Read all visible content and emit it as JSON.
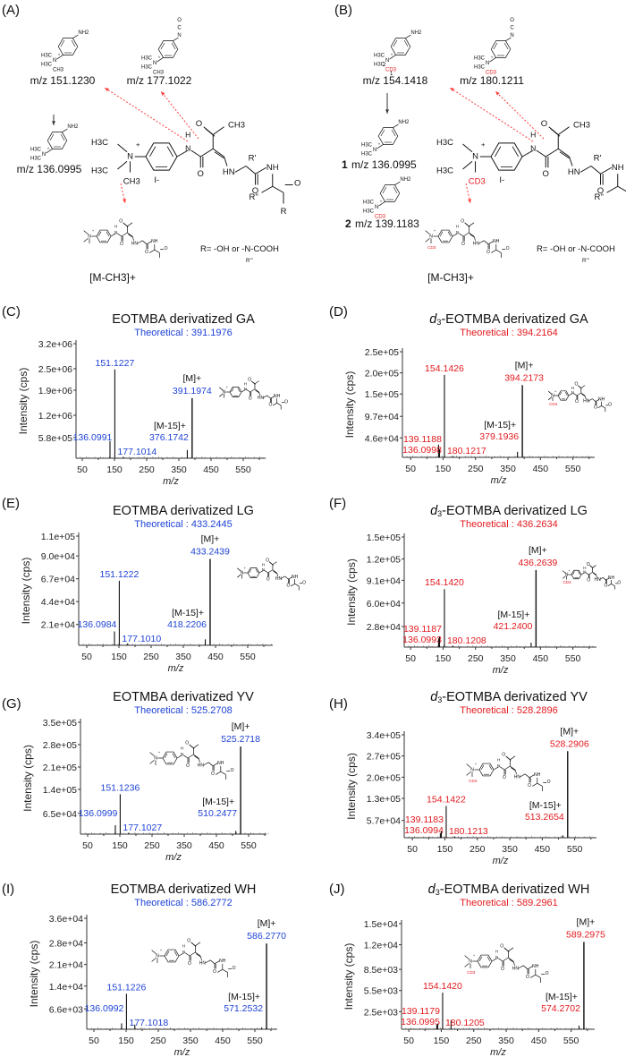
{
  "colors": {
    "light": "#1f43d6",
    "heavy": "#e3191e",
    "axis": "#333333",
    "arrow": "#ff3b3b"
  },
  "scheme": [
    {
      "panel": "(A)",
      "variant": "light",
      "reporter_label": "m/z 151.1230",
      "isocyanate_label": "m/z 177.1022",
      "demethyl_label": "m/z 136.0995",
      "loss_label": "[M-CH3]+",
      "r_def": "R= -OH or -N-COOH",
      "r_def_sub": "R'''"
    },
    {
      "panel": "(B)",
      "variant": "heavy",
      "reporter_label": "m/z 154.1418",
      "isocyanate_label": "m/z 180.1211",
      "frag1_label": "m/z 136.0995",
      "frag1_num": "1",
      "frag2_label": "m/z 139.1183",
      "frag2_num": "2",
      "path_numbers": [
        "2",
        "1"
      ],
      "loss_label": "[M-CH3]+",
      "r_def": "R= -OH or -N-COOH",
      "r_def_sub": "R'''"
    }
  ],
  "atom_labels": {
    "n": "N",
    "plus": "+",
    "h3c": "H3C",
    "ch3": "CH3",
    "cd3": "CD3",
    "nh2": "NH2",
    "o": "O",
    "c": "C",
    "h": "H",
    "hn": "HN",
    "nh": "NH",
    "oh": "OH",
    "iodide": "I-",
    "r1": "R'",
    "r2": "R''",
    "r": "R"
  },
  "chart_data": [
    {
      "panel": "(C)",
      "variant": "light",
      "type": "bar",
      "title": "EOTMBA derivatized GA",
      "title_d": "",
      "title_sub": "",
      "theoretical": "Theoretical : 391.1976",
      "xlabel": "m/z",
      "ylabel": "Intensity (cps)",
      "xticks": [
        50,
        150,
        250,
        350,
        450,
        550
      ],
      "xlim": [
        30,
        625
      ],
      "yticks": [
        580000,
        1200000,
        1900000,
        2500000,
        3200000
      ],
      "ytick_labels": [
        "5.8e+05",
        "1.2e+06",
        "1.9e+06",
        "2.5e+06",
        "3.2e+06"
      ],
      "peaks": [
        {
          "mz": 136.0991,
          "intensity": 480000,
          "label": "136.0991",
          "role": "demethyl"
        },
        {
          "mz": 151.1227,
          "intensity": 2480000,
          "label": "151.1227",
          "role": "reporter"
        },
        {
          "mz": 177.1014,
          "intensity": 30000,
          "label": "177.1014",
          "role": "isocyanate"
        },
        {
          "mz": 376.1742,
          "intensity": 230000,
          "label": "376.1742",
          "role": "m15",
          "ion": "[M-15]+"
        },
        {
          "mz": 391.1974,
          "intensity": 1680000,
          "label": "391.1974",
          "role": "molecular",
          "ion": "[M]+"
        }
      ]
    },
    {
      "panel": "(D)",
      "variant": "heavy",
      "type": "bar",
      "title": "-EOTMBA derivatized GA",
      "title_d": "d",
      "title_sub": "3",
      "theoretical": "Theoretical : 394.2164",
      "xlabel": "m/z",
      "ylabel": "Intensity (cps)",
      "xticks": [
        50,
        150,
        250,
        350,
        450,
        550
      ],
      "xlim": [
        25,
        620
      ],
      "yticks": [
        46000,
        97000,
        150000,
        200000,
        250000
      ],
      "ytick_labels": [
        "4.6e+04",
        "9.7e+04",
        "1.5e+05",
        "2.0e+05",
        "2.5e+05"
      ],
      "peaks": [
        {
          "mz": 136.0998,
          "intensity": 30000,
          "label": "136.0998",
          "role": "frag1"
        },
        {
          "mz": 139.1188,
          "intensity": 20000,
          "label": "139.1188",
          "role": "frag2"
        },
        {
          "mz": 154.1426,
          "intensity": 195000,
          "label": "154.1426",
          "role": "reporter"
        },
        {
          "mz": 180.1217,
          "intensity": 3000,
          "label": "180.1217",
          "role": "isocyanate"
        },
        {
          "mz": 379.1936,
          "intensity": 13000,
          "label": "379.1936",
          "role": "m15",
          "ion": "[M-15]+"
        },
        {
          "mz": 394.2173,
          "intensity": 171000,
          "label": "394.2173",
          "role": "molecular",
          "ion": "[M]+"
        }
      ]
    },
    {
      "panel": "(E)",
      "variant": "light",
      "type": "bar",
      "title": "EOTMBA derivatized LG",
      "title_d": "",
      "title_sub": "",
      "theoretical": "Theoretical : 433.2445",
      "xlabel": "m/z",
      "ylabel": "Intensity (cps)",
      "xticks": [
        50,
        150,
        250,
        350,
        450,
        550
      ],
      "xlim": [
        25,
        625
      ],
      "yticks": [
        21000,
        44000,
        67000,
        90000,
        110000
      ],
      "ytick_labels": [
        "2.1e+04",
        "4.4e+04",
        "6.7e+04",
        "9.0e+04",
        "1.1e+05"
      ],
      "peaks": [
        {
          "mz": 136.0984,
          "intensity": 14000,
          "label": "136.0984",
          "role": "demethyl"
        },
        {
          "mz": 151.1222,
          "intensity": 65000,
          "label": "151.1222",
          "role": "reporter"
        },
        {
          "mz": 177.101,
          "intensity": 2000,
          "label": "177.1010",
          "role": "isocyanate"
        },
        {
          "mz": 418.2206,
          "intensity": 6000,
          "label": "418.2206",
          "role": "m15",
          "ion": "[M-15]+"
        },
        {
          "mz": 433.2439,
          "intensity": 87000,
          "label": "433.2439",
          "role": "molecular",
          "ion": "[M]+"
        }
      ]
    },
    {
      "panel": "(F)",
      "variant": "heavy",
      "type": "bar",
      "title": "-EOTMBA derivatized LG",
      "title_d": "d",
      "title_sub": "3",
      "theoretical": "Theoretical : 436.2634",
      "xlabel": "m/z",
      "ylabel": "Intensity (cps)",
      "xticks": [
        50,
        150,
        250,
        350,
        450,
        550
      ],
      "xlim": [
        30,
        625
      ],
      "yticks": [
        28000,
        60000,
        91000,
        120000,
        150000
      ],
      "ytick_labels": [
        "2.8e+04",
        "6.0e+04",
        "9.1e+04",
        "1.2e+05",
        "1.5e+05"
      ],
      "peaks": [
        {
          "mz": 136.0993,
          "intensity": 12000,
          "label": "136.0993",
          "role": "frag1"
        },
        {
          "mz": 139.1187,
          "intensity": 14000,
          "label": "139.1187",
          "role": "frag2"
        },
        {
          "mz": 154.142,
          "intensity": 79000,
          "label": "154.1420",
          "role": "reporter"
        },
        {
          "mz": 180.1208,
          "intensity": 2000,
          "label": "180.1208",
          "role": "isocyanate"
        },
        {
          "mz": 421.24,
          "intensity": 6000,
          "label": "421.2400",
          "role": "m15",
          "ion": "[M-15]+"
        },
        {
          "mz": 436.2639,
          "intensity": 105000,
          "label": "436.2639",
          "role": "molecular",
          "ion": "[M]+"
        }
      ]
    },
    {
      "panel": "(G)",
      "variant": "light",
      "type": "bar",
      "title": "EOTMBA derivatized YV",
      "title_d": "",
      "title_sub": "",
      "theoretical": "Theoretical : 525.2708",
      "xlabel": "m/z",
      "ylabel": "Intensity (cps)",
      "xticks": [
        50,
        150,
        250,
        350,
        450,
        550
      ],
      "xlim": [
        30,
        620
      ],
      "yticks": [
        65000,
        140000,
        210000,
        280000,
        350000
      ],
      "ytick_labels": [
        "6.5e+04",
        "1.4e+05",
        "2.1e+05",
        "2.8e+05",
        "3.5e+05"
      ],
      "peaks": [
        {
          "mz": 136.0999,
          "intensity": 28000,
          "label": "136.0999",
          "role": "demethyl"
        },
        {
          "mz": 151.1236,
          "intensity": 125000,
          "label": "151.1236",
          "role": "reporter"
        },
        {
          "mz": 177.1027,
          "intensity": 3000,
          "label": "177.1027",
          "role": "isocyanate"
        },
        {
          "mz": 510.2477,
          "intensity": 10000,
          "label": "510.2477",
          "role": "m15",
          "ion": "[M-15]+"
        },
        {
          "mz": 525.2718,
          "intensity": 274000,
          "label": "525.2718",
          "role": "molecular",
          "ion": "[M]+"
        }
      ]
    },
    {
      "panel": "(H)",
      "variant": "heavy",
      "type": "bar",
      "title": "-EOTMBA derivatized YV",
      "title_d": "d",
      "title_sub": "3",
      "theoretical": "Theoretical : 528.2896",
      "xlabel": "m/z",
      "ylabel": "Intensity (cps)",
      "xticks": [
        50,
        150,
        250,
        350,
        450,
        550
      ],
      "xlim": [
        25,
        620
      ],
      "yticks": [
        57000,
        130000,
        200000,
        270000,
        340000
      ],
      "ytick_labels": [
        "5.7e+04",
        "1.3e+05",
        "2.0e+05",
        "2.7e+05",
        "3.4e+05"
      ],
      "peaks": [
        {
          "mz": 136.0994,
          "intensity": 15000,
          "label": "136.0994",
          "role": "frag1"
        },
        {
          "mz": 139.1183,
          "intensity": 22000,
          "label": "139.1183",
          "role": "frag2"
        },
        {
          "mz": 154.1422,
          "intensity": 105000,
          "label": "154.1422",
          "role": "reporter"
        },
        {
          "mz": 180.1213,
          "intensity": 3000,
          "label": "180.1213",
          "role": "isocyanate"
        },
        {
          "mz": 513.2654,
          "intensity": 8000,
          "label": "513.2654",
          "role": "m15",
          "ion": "[M-15]+"
        },
        {
          "mz": 528.2906,
          "intensity": 286000,
          "label": "528.2906",
          "role": "molecular",
          "ion": "[M]+"
        }
      ]
    },
    {
      "panel": "(I)",
      "variant": "light",
      "type": "bar",
      "title": "EOTMBA derivatized WH",
      "title_d": "",
      "title_sub": "",
      "theoretical": "Theoretical : 586.2772",
      "xlabel": "m/z",
      "ylabel": "Intensity (cps)",
      "xticks": [
        50,
        150,
        250,
        350,
        450,
        550
      ],
      "xlim": [
        30,
        620
      ],
      "yticks": [
        6600,
        14000,
        21000,
        28000,
        36000
      ],
      "ytick_labels": [
        "6.6e+03",
        "1.4e+04",
        "2.1e+04",
        "2.8e+04",
        "3.6e+04"
      ],
      "peaks": [
        {
          "mz": 136.0992,
          "intensity": 1900,
          "label": "136.0992",
          "role": "demethyl"
        },
        {
          "mz": 151.1226,
          "intensity": 11500,
          "label": "151.1226",
          "role": "reporter"
        },
        {
          "mz": 177.1018,
          "intensity": 1500,
          "label": "177.1018",
          "role": "isocyanate"
        },
        {
          "mz": 571.2532,
          "intensity": 600,
          "label": "571.2532",
          "role": "m15",
          "ion": "[M-15]+"
        },
        {
          "mz": 586.277,
          "intensity": 27800,
          "label": "586.2770",
          "role": "molecular",
          "ion": "[M]+"
        }
      ]
    },
    {
      "panel": "(J)",
      "variant": "heavy",
      "type": "bar",
      "title": "-EOTMBA derivatized WH",
      "title_d": "d",
      "title_sub": "3",
      "theoretical": "Theoretical : 589.2961",
      "xlabel": "m/z",
      "ylabel": "Intensity (cps)",
      "xticks": [
        50,
        150,
        250,
        350,
        450,
        550
      ],
      "xlim": [
        25,
        620
      ],
      "yticks": [
        2500,
        5500,
        8500,
        12000,
        15000
      ],
      "ytick_labels": [
        "2.5e+03",
        "5.5e+03",
        "8.5e+03",
        "1.2e+04",
        "1.5e+04"
      ],
      "peaks": [
        {
          "mz": 136.0995,
          "intensity": 600,
          "label": "136.0995",
          "role": "frag1"
        },
        {
          "mz": 139.1179,
          "intensity": 800,
          "label": "139.1179",
          "role": "frag2"
        },
        {
          "mz": 154.142,
          "intensity": 5200,
          "label": "154.1420",
          "role": "reporter"
        },
        {
          "mz": 180.1205,
          "intensity": 1300,
          "label": "180.1205",
          "role": "isocyanate"
        },
        {
          "mz": 574.2702,
          "intensity": 500,
          "label": "574.2702",
          "role": "m15",
          "ion": "[M-15]+"
        },
        {
          "mz": 589.2975,
          "intensity": 12400,
          "label": "589.2975",
          "role": "molecular",
          "ion": "[M]+"
        }
      ]
    }
  ]
}
